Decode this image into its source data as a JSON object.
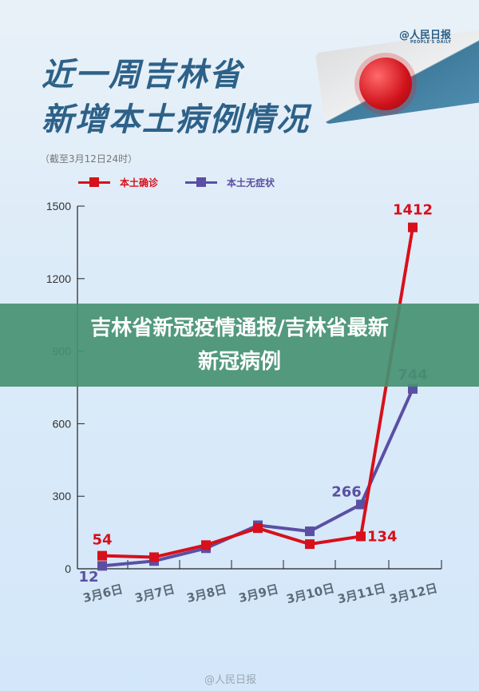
{
  "logo": {
    "name": "@人民日报",
    "sub": "PEOPLE'S DAILY"
  },
  "header": {
    "title_line1": "近一周吉林省",
    "title_line2": "新增本土病例情况",
    "note": "（截至3月12日24时）"
  },
  "banner": {
    "line1": "吉林省新冠疫情通报/吉林省最新",
    "line2": "新冠病例"
  },
  "footer": {
    "watermark": "@人民日报"
  },
  "chart_data": {
    "type": "line",
    "categories": [
      "3月6日",
      "3月7日",
      "3月8日",
      "3月9日",
      "3月10日",
      "3月11日",
      "3月12日"
    ],
    "series": [
      {
        "name": "本土确诊",
        "color": "#d7101b",
        "values": [
          54,
          48,
          98,
          168,
          102,
          134,
          1412
        ],
        "labels": {
          "0": "54",
          "5": "134",
          "6": "1412"
        }
      },
      {
        "name": "本土无症状",
        "color": "#5b4fa3",
        "values": [
          12,
          32,
          85,
          180,
          155,
          266,
          744
        ],
        "labels": {
          "0": "12",
          "5": "266",
          "6": "744"
        }
      }
    ],
    "ylim": [
      0,
      1500
    ],
    "yticks": [
      "0",
      "300",
      "600",
      "900",
      "1200",
      "1500"
    ],
    "legend": "top-left",
    "grid": false
  }
}
